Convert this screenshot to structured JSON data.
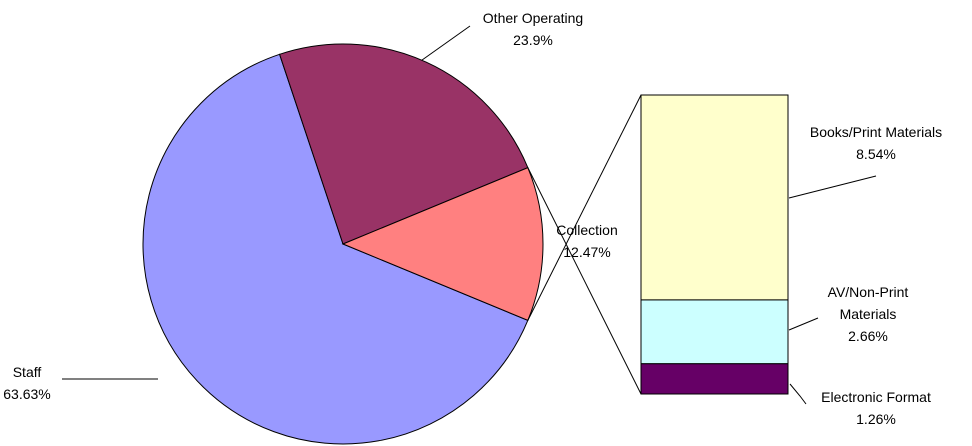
{
  "chart_data": {
    "type": "bar-of-pie",
    "categories": [
      "Staff",
      "Other Operating",
      "Collection"
    ],
    "values": [
      63.63,
      23.9,
      12.47
    ],
    "value_labels": [
      "63.63%",
      "23.9%",
      "12.47%"
    ],
    "colors": [
      "#9999ff",
      "#993366",
      "#ff8080"
    ],
    "breakdown": {
      "categories": [
        "Books/Print Materials",
        "AV/Non-Print Materials",
        "Electronic Format"
      ],
      "values": [
        8.54,
        2.66,
        1.26
      ],
      "value_labels": [
        "8.54%",
        "2.66%",
        "1.26%"
      ],
      "colors": [
        "#ffffcc",
        "#ccffff",
        "#660066"
      ]
    }
  }
}
